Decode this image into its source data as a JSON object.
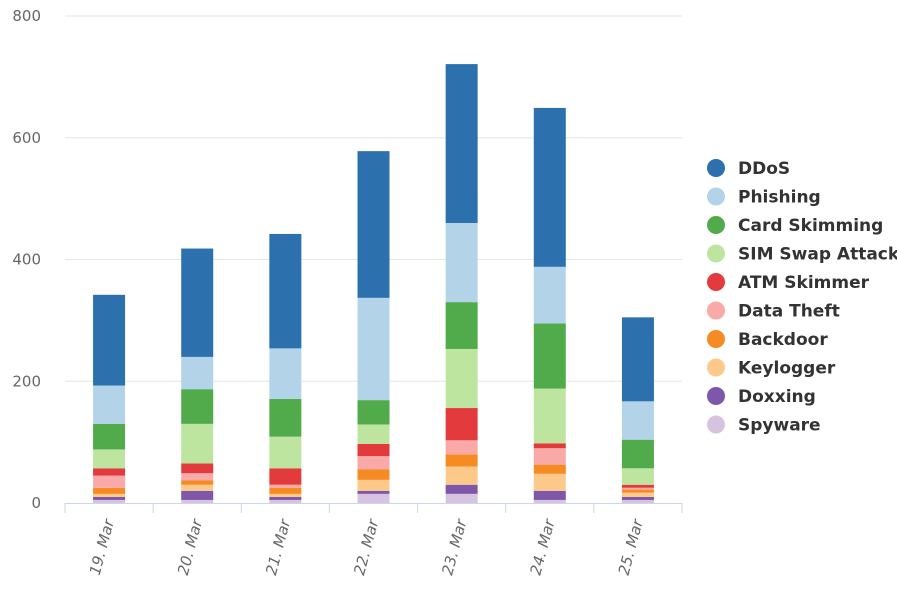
{
  "chart_data": {
    "type": "bar",
    "stacked": true,
    "categories": [
      "19. Mar",
      "20. Mar",
      "21. Mar",
      "22. Mar",
      "23. Mar",
      "24. Mar",
      "25. Mar"
    ],
    "ylim": [
      0,
      800
    ],
    "yticks": [
      "0",
      "200",
      "400",
      "600",
      "800"
    ],
    "grid": true,
    "legend_position": "right",
    "series": [
      {
        "name": "Spyware",
        "color": "#d6c3e0",
        "values": [
          5,
          5,
          5,
          15,
          15,
          5,
          5
        ]
      },
      {
        "name": "Doxxing",
        "color": "#7e57a8",
        "values": [
          5,
          15,
          5,
          5,
          15,
          15,
          5
        ]
      },
      {
        "name": "Keylogger",
        "color": "#fdc98a",
        "values": [
          5,
          10,
          5,
          18,
          30,
          28,
          7
        ]
      },
      {
        "name": "Backdoor",
        "color": "#f58b22",
        "values": [
          10,
          7,
          10,
          17,
          20,
          15,
          5
        ]
      },
      {
        "name": "Data Theft",
        "color": "#f8a9a8",
        "values": [
          20,
          12,
          5,
          22,
          23,
          27,
          3
        ]
      },
      {
        "name": "ATM Skimmer",
        "color": "#e33b3d",
        "values": [
          12,
          16,
          27,
          20,
          53,
          8,
          5
        ]
      },
      {
        "name": "SIM Swap Attack",
        "color": "#bde5a0",
        "values": [
          31,
          65,
          52,
          32,
          97,
          90,
          27
        ]
      },
      {
        "name": "Card Skimming",
        "color": "#52ab4b",
        "values": [
          42,
          57,
          62,
          40,
          77,
          107,
          47
        ]
      },
      {
        "name": "Phishing",
        "color": "#b3d4e8",
        "values": [
          63,
          53,
          83,
          168,
          130,
          93,
          63
        ]
      },
      {
        "name": "DDoS",
        "color": "#2c70ae",
        "values": [
          149,
          178,
          188,
          241,
          261,
          261,
          138
        ]
      }
    ]
  },
  "legend_order": [
    "DDoS",
    "Phishing",
    "Card Skimming",
    "SIM Swap Attack",
    "ATM Skimmer",
    "Data Theft",
    "Backdoor",
    "Keylogger",
    "Doxxing",
    "Spyware"
  ]
}
